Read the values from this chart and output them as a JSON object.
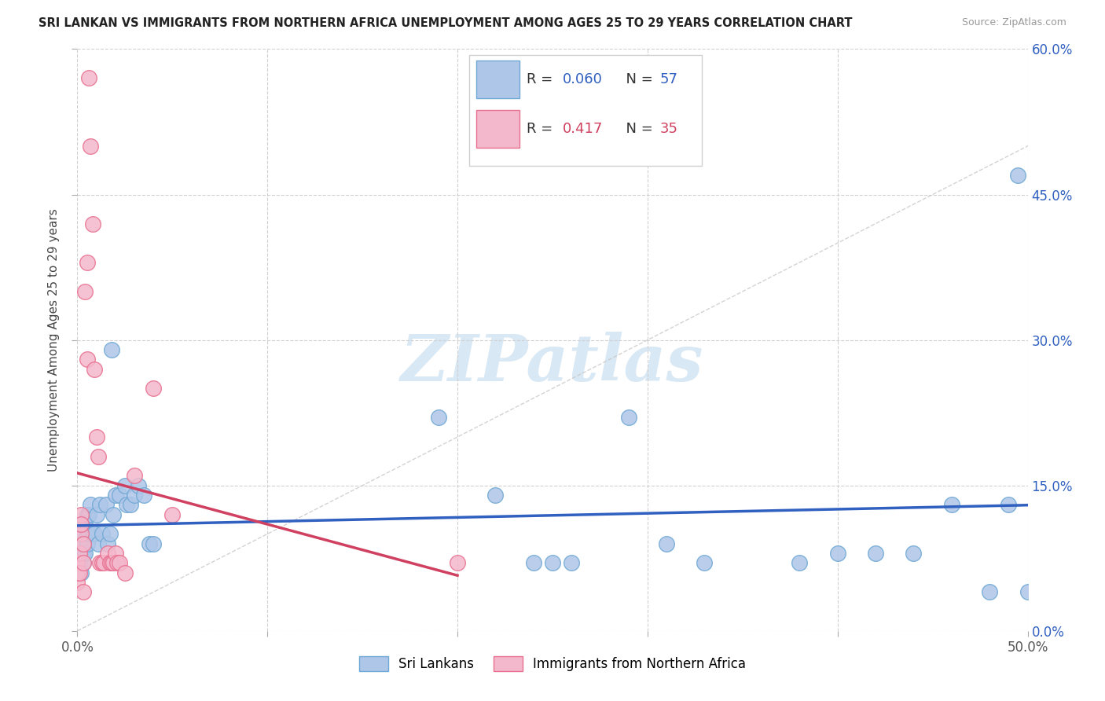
{
  "title": "SRI LANKAN VS IMMIGRANTS FROM NORTHERN AFRICA UNEMPLOYMENT AMONG AGES 25 TO 29 YEARS CORRELATION CHART",
  "source": "Source: ZipAtlas.com",
  "ylabel": "Unemployment Among Ages 25 to 29 years",
  "xlim": [
    0.0,
    0.5
  ],
  "ylim": [
    0.0,
    0.6
  ],
  "xticks": [
    0.0,
    0.1,
    0.2,
    0.3,
    0.4,
    0.5
  ],
  "xticklabels_show": [
    "0.0%",
    "",
    "",
    "",
    "",
    "50.0%"
  ],
  "yticks": [
    0.0,
    0.15,
    0.3,
    0.45,
    0.6
  ],
  "yticklabels_right": [
    "0.0%",
    "15.0%",
    "30.0%",
    "45.0%",
    "60.0%"
  ],
  "series1_label": "Sri Lankans",
  "series1_color": "#aec6e8",
  "series1_edgecolor": "#6fa8d4",
  "series1_R": 0.06,
  "series1_N": 57,
  "series2_label": "Immigrants from Northern Africa",
  "series2_color": "#f4b8cc",
  "series2_edgecolor": "#e87090",
  "series2_R": 0.417,
  "series2_N": 35,
  "trend1_color": "#3060c0",
  "trend2_color": "#d04060",
  "diagonal_color": "#c8c8c8",
  "watermark_text": "ZIPatlas",
  "watermark_color": "#d8e8f4",
  "scatter1_x": [
    0.0,
    0.0,
    0.0,
    0.001,
    0.001,
    0.002,
    0.002,
    0.002,
    0.003,
    0.003,
    0.003,
    0.004,
    0.004,
    0.005,
    0.005,
    0.005,
    0.006,
    0.006,
    0.007,
    0.008,
    0.009,
    0.01,
    0.011,
    0.012,
    0.013,
    0.015,
    0.016,
    0.017,
    0.018,
    0.019,
    0.02,
    0.022,
    0.025,
    0.026,
    0.028,
    0.03,
    0.032,
    0.035,
    0.038,
    0.04,
    0.19,
    0.22,
    0.24,
    0.25,
    0.26,
    0.29,
    0.31,
    0.33,
    0.38,
    0.4,
    0.42,
    0.44,
    0.46,
    0.48,
    0.49,
    0.495,
    0.5
  ],
  "scatter1_y": [
    0.08,
    0.1,
    0.06,
    0.09,
    0.07,
    0.08,
    0.06,
    0.1,
    0.09,
    0.07,
    0.08,
    0.11,
    0.08,
    0.12,
    0.1,
    0.09,
    0.1,
    0.12,
    0.13,
    0.1,
    0.1,
    0.12,
    0.09,
    0.13,
    0.1,
    0.13,
    0.09,
    0.1,
    0.29,
    0.12,
    0.14,
    0.14,
    0.15,
    0.13,
    0.13,
    0.14,
    0.15,
    0.14,
    0.09,
    0.09,
    0.22,
    0.14,
    0.07,
    0.07,
    0.07,
    0.22,
    0.09,
    0.07,
    0.07,
    0.08,
    0.08,
    0.08,
    0.13,
    0.04,
    0.13,
    0.47,
    0.04
  ],
  "scatter2_x": [
    0.0,
    0.0,
    0.0,
    0.001,
    0.001,
    0.002,
    0.002,
    0.002,
    0.003,
    0.003,
    0.003,
    0.004,
    0.005,
    0.005,
    0.006,
    0.007,
    0.008,
    0.009,
    0.01,
    0.011,
    0.012,
    0.013,
    0.014,
    0.016,
    0.017,
    0.018,
    0.019,
    0.02,
    0.021,
    0.022,
    0.025,
    0.03,
    0.04,
    0.05,
    0.2
  ],
  "scatter2_y": [
    0.07,
    0.05,
    0.06,
    0.08,
    0.06,
    0.1,
    0.12,
    0.11,
    0.07,
    0.09,
    0.04,
    0.35,
    0.38,
    0.28,
    0.57,
    0.5,
    0.42,
    0.27,
    0.2,
    0.18,
    0.07,
    0.07,
    0.07,
    0.08,
    0.07,
    0.07,
    0.07,
    0.08,
    0.07,
    0.07,
    0.06,
    0.16,
    0.25,
    0.12,
    0.07
  ]
}
